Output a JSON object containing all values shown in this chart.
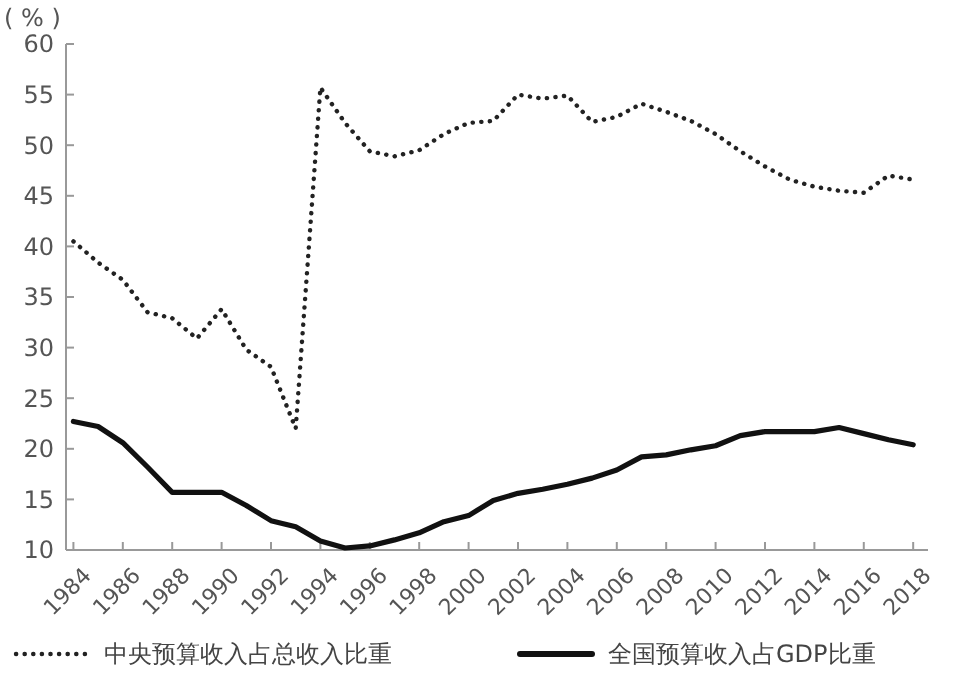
{
  "chart_data": {
    "type": "line",
    "ylabel": "( % )",
    "x": [
      1984,
      1985,
      1986,
      1987,
      1988,
      1989,
      1990,
      1991,
      1992,
      1993,
      1994,
      1995,
      1996,
      1997,
      1998,
      1999,
      2000,
      2001,
      2002,
      2003,
      2004,
      2005,
      2006,
      2007,
      2008,
      2009,
      2010,
      2011,
      2012,
      2013,
      2014,
      2015,
      2016,
      2017,
      2018
    ],
    "xlim": [
      1983.7,
      2018.6
    ],
    "xticks": [
      1984,
      1986,
      1988,
      1990,
      1992,
      1994,
      1996,
      1998,
      2000,
      2002,
      2004,
      2006,
      2008,
      2010,
      2012,
      2014,
      2016,
      2018
    ],
    "ylim": [
      10,
      60
    ],
    "yticks": [
      10,
      15,
      20,
      25,
      30,
      35,
      40,
      45,
      50,
      55,
      60
    ],
    "grid": false,
    "legend": "bottom",
    "marker": "none",
    "series": [
      {
        "name": "中央预算收入占总收入比重",
        "color": "#222222",
        "line_style": "dotted",
        "values": [
          40.5,
          38.4,
          36.7,
          33.5,
          32.9,
          30.9,
          33.8,
          29.8,
          28.1,
          22.0,
          55.7,
          52.2,
          49.4,
          48.9,
          49.5,
          51.1,
          52.2,
          52.4,
          55.0,
          54.6,
          54.9,
          52.3,
          52.8,
          54.1,
          53.3,
          52.4,
          51.1,
          49.4,
          47.9,
          46.6,
          45.9,
          45.5,
          45.3,
          47.0,
          46.6
        ]
      },
      {
        "name": "全国预算收入占GDP比重",
        "color": "#111111",
        "line_style": "solid",
        "values": [
          22.7,
          22.2,
          20.6,
          18.2,
          15.7,
          15.7,
          15.7,
          14.4,
          12.9,
          12.3,
          10.9,
          10.2,
          10.4,
          11.0,
          11.7,
          12.8,
          13.4,
          14.9,
          15.6,
          16.0,
          16.5,
          17.1,
          17.9,
          19.2,
          19.4,
          19.9,
          20.3,
          21.3,
          21.7,
          21.7,
          21.7,
          22.1,
          21.5,
          20.9,
          20.4
        ]
      }
    ]
  }
}
